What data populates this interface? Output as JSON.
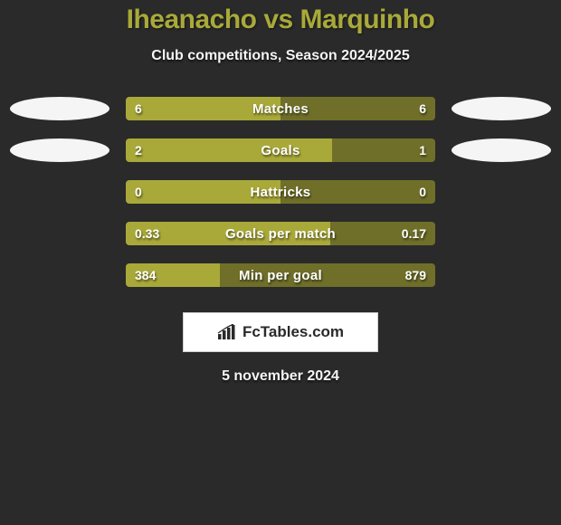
{
  "title": "Iheanacho vs Marquinho",
  "subtitle": "Club competitions, Season 2024/2025",
  "colors": {
    "page_bg": "#2a2a2a",
    "accent": "#a9a93a",
    "bar_left_fill": "#a9a93a",
    "bar_right_fill": "#6f6f29",
    "ellipse": "#f5f5f5",
    "text_light": "#ffffff"
  },
  "rows": [
    {
      "label": "Matches",
      "left_value": "6",
      "right_value": "6",
      "left_pct": 50,
      "show_ellipses": true
    },
    {
      "label": "Goals",
      "left_value": "2",
      "right_value": "1",
      "left_pct": 66.7,
      "show_ellipses": true
    },
    {
      "label": "Hattricks",
      "left_value": "0",
      "right_value": "0",
      "left_pct": 50,
      "show_ellipses": false
    },
    {
      "label": "Goals per match",
      "left_value": "0.33",
      "right_value": "0.17",
      "left_pct": 66,
      "show_ellipses": false
    },
    {
      "label": "Min per goal",
      "left_value": "384",
      "right_value": "879",
      "left_pct": 30.4,
      "show_ellipses": false
    }
  ],
  "logo": {
    "text": "FcTables.com"
  },
  "date": "5 november 2024"
}
